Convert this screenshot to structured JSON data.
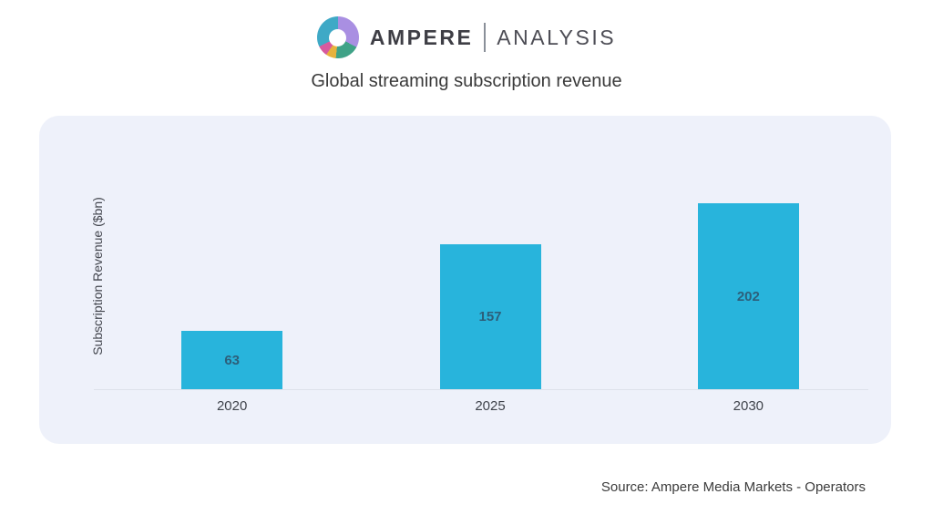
{
  "brand": {
    "name_primary": "AMPERE",
    "name_secondary": "ANALYSIS",
    "logo_segments": [
      {
        "name": "purple",
        "color": "#a98fe2",
        "start": 0,
        "end": 118
      },
      {
        "name": "green",
        "color": "#3fa287",
        "start": 118,
        "end": 186
      },
      {
        "name": "yellow",
        "color": "#e7b23c",
        "start": 186,
        "end": 214
      },
      {
        "name": "pink",
        "color": "#d65a9e",
        "start": 214,
        "end": 244
      },
      {
        "name": "teal",
        "color": "#3fa9c6",
        "start": 244,
        "end": 360
      }
    ]
  },
  "title": "Global streaming subscription revenue",
  "source_note": "Source: Ampere Media Markets - Operators",
  "chart_data": {
    "type": "bar",
    "categories": [
      "2020",
      "2025",
      "2030"
    ],
    "values": [
      63,
      157,
      202
    ],
    "title": "Global streaming subscription revenue",
    "xlabel": "",
    "ylabel": "Subscription Revenue ($bn)",
    "data_labels": true,
    "legend": false,
    "grid": false,
    "y_ticks_visible": false,
    "bar_color": "#28b4dc",
    "value_label_color": "#2d5f7a",
    "panel_background": "#eef1fa",
    "axis_line_color": "#dde1ea",
    "tick_label_color": "#3f434b"
  }
}
